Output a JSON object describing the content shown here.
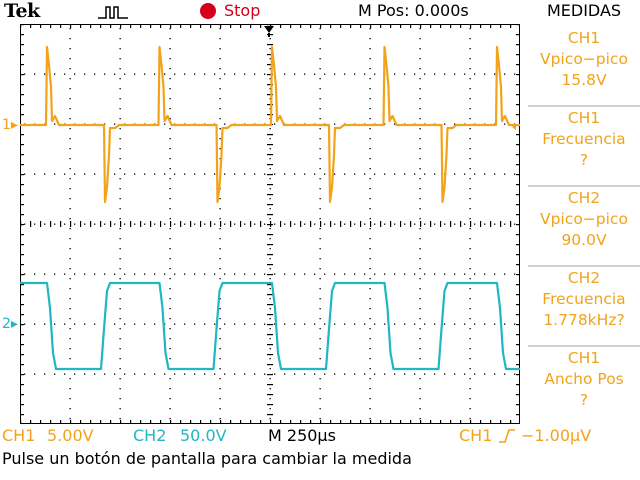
{
  "header": {
    "brand": "Tek",
    "trigger_status_icon": "trigger-pulse-icon",
    "run_state": "Stop",
    "horizontal_position": "M Pos: 0.000s",
    "menu_title": "MEDIDAS"
  },
  "channels": {
    "ch1_marker": "1",
    "ch2_marker": "2"
  },
  "measurements": [
    {
      "source": "CH1",
      "type": "Vpico−pico",
      "value": "15.8V"
    },
    {
      "source": "CH1",
      "type": "Frecuencia",
      "value": "?"
    },
    {
      "source": "CH2",
      "type": "Vpico−pico",
      "value": "90.0V"
    },
    {
      "source": "CH2",
      "type": "Frecuencia",
      "value": "1.778kHz?"
    },
    {
      "source": "CH1",
      "type": "Ancho Pos",
      "value": "?"
    }
  ],
  "status_bar": {
    "ch1_label": "CH1",
    "ch1_scale": "5.00V",
    "ch2_label": "CH2",
    "ch2_scale": "50.0V",
    "timebase": "M 250µs",
    "trigger_source": "CH1",
    "trigger_level": "−1.00µV"
  },
  "message": "Pulse un botón de pantalla para cambiar la medida",
  "colors": {
    "ch1": "#f2a31b",
    "ch2": "#1fb7c3",
    "run": "#d4001a",
    "grid": "#000000"
  },
  "waveforms": {
    "ch1_period_divisions": 2.25,
    "ch2_period_divisions": 2.25
  }
}
